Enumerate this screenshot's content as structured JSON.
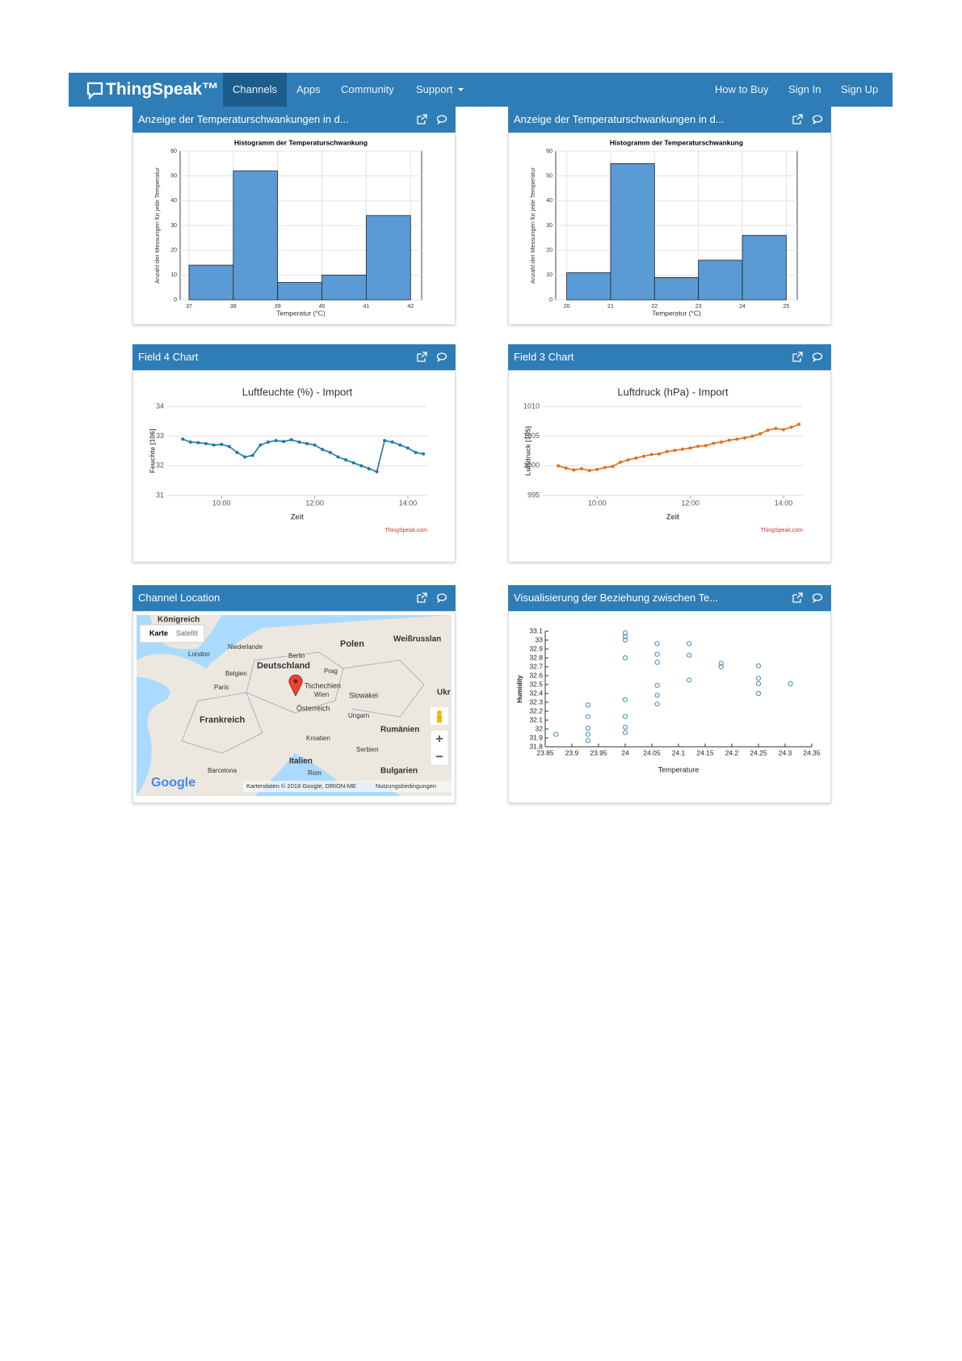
{
  "nav": {
    "brand": "ThingSpeak™",
    "links": [
      "Channels",
      "Apps",
      "Community",
      "Support"
    ],
    "right_links": [
      "How to Buy",
      "Sign In",
      "Sign Up"
    ]
  },
  "chart_data": [
    {
      "type": "histogram",
      "panel_title": "Anzeige der Temperaturschwankungen in d...",
      "title": "Histogramm der Temperaturschwankung",
      "x_label": "Temperatur (°C)",
      "y_label": "Anzahl der Messungen für jede Temperatur",
      "bins": [
        37,
        38,
        39,
        40,
        41,
        42
      ],
      "values": [
        14,
        52,
        7,
        10,
        34
      ],
      "color": "#5b9bd5",
      "xlim": [
        36.8,
        42.25
      ],
      "xticks": [
        37,
        38,
        39,
        40,
        41,
        42
      ],
      "ylim": [
        0,
        60
      ],
      "yticks": [
        0,
        10,
        20,
        30,
        40,
        50,
        60
      ],
      "grid": true
    },
    {
      "type": "histogram",
      "panel_title": "Anzeige der Temperaturschwankungen in d...",
      "title": "Histogramm der Temperaturschwankung",
      "x_label": "Temperatur (°C)",
      "y_label": "Anzahl der Messungen für jede Temperatur",
      "bins": [
        20,
        21,
        22,
        23,
        24,
        25
      ],
      "values": [
        11,
        55,
        9,
        16,
        26
      ],
      "color": "#5b9bd5",
      "xlim": [
        19.75,
        25.25
      ],
      "xticks": [
        20,
        21,
        22,
        23,
        24,
        25
      ],
      "ylim": [
        0,
        60
      ],
      "yticks": [
        0,
        10,
        20,
        30,
        40,
        50,
        60
      ],
      "grid": true
    },
    {
      "type": "line",
      "panel_title": "Field 4 Chart",
      "title": "Luftfeuchte (%) - Import",
      "x_label": "Zeit",
      "y_label": "Feuchte [106]",
      "credit": "ThingSpeak.com",
      "x": [
        "09:10",
        "09:20",
        "09:30",
        "09:40",
        "09:50",
        "10:00",
        "10:10",
        "10:20",
        "10:30",
        "10:40",
        "10:50",
        "11:00",
        "11:10",
        "11:20",
        "11:30",
        "11:40",
        "11:50",
        "12:00",
        "12:10",
        "12:20",
        "12:30",
        "12:40",
        "12:50",
        "13:00",
        "13:10",
        "13:20",
        "13:30",
        "13:40",
        "13:50",
        "14:00",
        "14:10",
        "14:20"
      ],
      "series": [
        {
          "name": "Luftfeuchte",
          "color": "#1f78a4",
          "values": [
            32.9,
            32.8,
            32.78,
            32.75,
            32.7,
            32.72,
            32.65,
            32.45,
            32.3,
            32.35,
            32.7,
            32.8,
            32.85,
            32.82,
            32.88,
            32.8,
            32.75,
            32.7,
            32.55,
            32.45,
            32.3,
            32.2,
            32.1,
            32.0,
            31.9,
            31.8,
            32.85,
            32.8,
            32.7,
            32.6,
            32.45,
            32.4
          ]
        }
      ],
      "xlim": [
        "08:50",
        "14:25"
      ],
      "xticks": [
        "10:00",
        "12:00",
        "14:00"
      ],
      "ylim": [
        31,
        34
      ],
      "yticks": [
        31,
        32,
        33,
        34
      ],
      "grid": true
    },
    {
      "type": "line",
      "panel_title": "Field 3 Chart",
      "title": "Luftdruck (hPa) - Import",
      "x_label": "Zeit",
      "y_label": "Luftdruck [105]",
      "credit": "ThingSpeak.com",
      "x": [
        "09:10",
        "09:20",
        "09:30",
        "09:40",
        "09:50",
        "10:00",
        "10:10",
        "10:20",
        "10:30",
        "10:40",
        "10:50",
        "11:00",
        "11:10",
        "11:20",
        "11:30",
        "11:40",
        "11:50",
        "12:00",
        "12:10",
        "12:20",
        "12:30",
        "12:40",
        "12:50",
        "13:00",
        "13:10",
        "13:20",
        "13:30",
        "13:40",
        "13:50",
        "14:00",
        "14:10",
        "14:20"
      ],
      "series": [
        {
          "name": "Luftdruck",
          "color": "#e07020",
          "values": [
            1000,
            999.6,
            999.3,
            999.5,
            999.2,
            999.4,
            999.7,
            999.9,
            1000.6,
            1001,
            1001.3,
            1001.6,
            1001.9,
            1002,
            1002.4,
            1002.6,
            1002.8,
            1003,
            1003.3,
            1003.4,
            1003.8,
            1004,
            1004.3,
            1004.5,
            1004.7,
            1005,
            1005.4,
            1006,
            1006.3,
            1006.1,
            1006.5,
            1007
          ]
        }
      ],
      "xlim": [
        "08:50",
        "14:25"
      ],
      "xticks": [
        "10:00",
        "12:00",
        "14:00"
      ],
      "ylim": [
        995,
        1010
      ],
      "yticks": [
        995,
        1000,
        1005,
        1010
      ],
      "grid": true
    },
    {
      "type": "scatter",
      "panel_title": "Visualisierung der Beziehung zwischen Te...",
      "x_label": "Temperature",
      "y_label": "Humidity",
      "color": "#3d8eb8",
      "x": [
        23.87,
        23.93,
        23.93,
        23.93,
        23.93,
        23.93,
        24,
        24,
        24,
        24,
        24,
        24,
        24,
        24,
        24.06,
        24.06,
        24.06,
        24.06,
        24.06,
        24.06,
        24.12,
        24.12,
        24.12,
        24.18,
        24.18,
        24.25,
        24.25,
        24.25,
        24.25,
        24.31
      ],
      "values": [
        31.94,
        32.27,
        32.14,
        32.01,
        31.94,
        31.87,
        33.08,
        33.04,
        33.0,
        32.8,
        32.33,
        32.14,
        32.02,
        31.96,
        32.96,
        32.84,
        32.75,
        32.49,
        32.38,
        32.28,
        32.96,
        32.83,
        32.55,
        32.74,
        32.7,
        32.71,
        32.57,
        32.51,
        32.4,
        32.51
      ],
      "xlim": [
        23.85,
        24.35
      ],
      "xticks": [
        23.85,
        23.9,
        23.95,
        24,
        24.05,
        24.1,
        24.15,
        24.2,
        24.25,
        24.3,
        24.35
      ],
      "ylim": [
        31.8,
        33.1
      ],
      "yticks": [
        31.8,
        31.9,
        32,
        32.1,
        32.2,
        32.3,
        32.4,
        32.5,
        32.6,
        32.7,
        32.8,
        32.9,
        33,
        33.1
      ]
    }
  ],
  "map": {
    "panel_title": "Channel Location",
    "view_buttons": [
      "Karte",
      "Satellit"
    ],
    "logo": "Google",
    "attribution": "Kartendaten © 2018 Google, ORION-ME",
    "terms": "Nutzungsbedingungen",
    "labels": [
      "Königreich",
      "Niederlande",
      "Berlin",
      "Polen",
      "Weißrusslan",
      "London",
      "Deutschland",
      "Belgien",
      "Prag",
      "Paris",
      "Tschechien",
      "Wien",
      "Slowakei",
      "Ukr",
      "Österreich",
      "Ungarn",
      "Frankreich",
      "Rumänien",
      "Kroatien",
      "Serbien",
      "Italien",
      "Rom",
      "Barcelona",
      "Bulgarien"
    ]
  }
}
